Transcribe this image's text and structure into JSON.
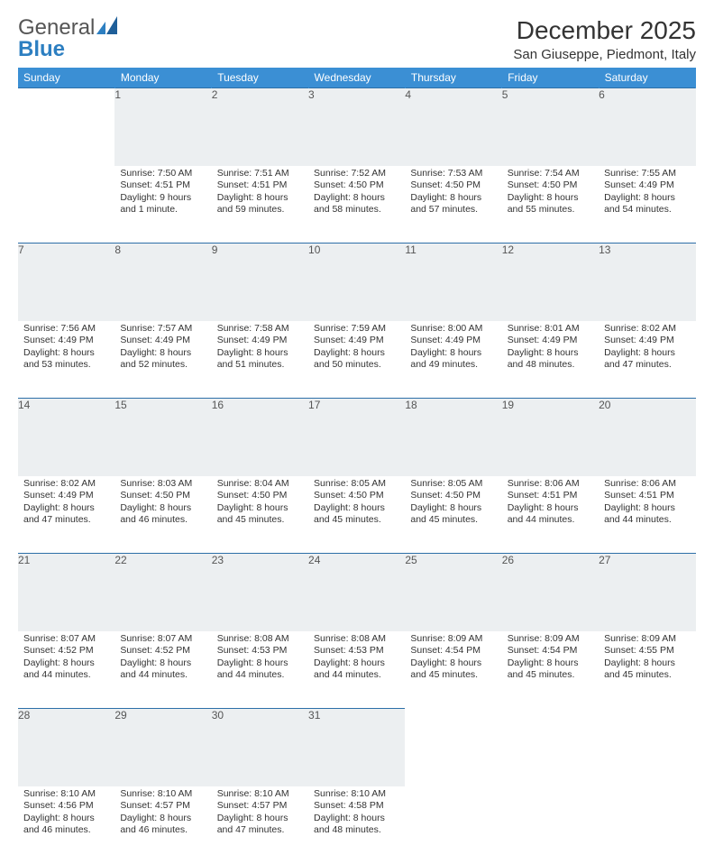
{
  "brand": {
    "part1": "General",
    "part2": "Blue"
  },
  "title": "December 2025",
  "location": "San Giuseppe, Piedmont, Italy",
  "colors": {
    "header_bg": "#3b8fd4",
    "header_text": "#ffffff",
    "daynum_bg": "#eceff1",
    "row_border": "#2d6fa8",
    "text": "#333333",
    "brand_grey": "#555555",
    "brand_blue": "#2d7fc1"
  },
  "day_headers": [
    "Sunday",
    "Monday",
    "Tuesday",
    "Wednesday",
    "Thursday",
    "Friday",
    "Saturday"
  ],
  "weeks": [
    [
      null,
      {
        "n": "1",
        "sr": "7:50 AM",
        "ss": "4:51 PM",
        "dl": "9 hours and 1 minute."
      },
      {
        "n": "2",
        "sr": "7:51 AM",
        "ss": "4:51 PM",
        "dl": "8 hours and 59 minutes."
      },
      {
        "n": "3",
        "sr": "7:52 AM",
        "ss": "4:50 PM",
        "dl": "8 hours and 58 minutes."
      },
      {
        "n": "4",
        "sr": "7:53 AM",
        "ss": "4:50 PM",
        "dl": "8 hours and 57 minutes."
      },
      {
        "n": "5",
        "sr": "7:54 AM",
        "ss": "4:50 PM",
        "dl": "8 hours and 55 minutes."
      },
      {
        "n": "6",
        "sr": "7:55 AM",
        "ss": "4:49 PM",
        "dl": "8 hours and 54 minutes."
      }
    ],
    [
      {
        "n": "7",
        "sr": "7:56 AM",
        "ss": "4:49 PM",
        "dl": "8 hours and 53 minutes."
      },
      {
        "n": "8",
        "sr": "7:57 AM",
        "ss": "4:49 PM",
        "dl": "8 hours and 52 minutes."
      },
      {
        "n": "9",
        "sr": "7:58 AM",
        "ss": "4:49 PM",
        "dl": "8 hours and 51 minutes."
      },
      {
        "n": "10",
        "sr": "7:59 AM",
        "ss": "4:49 PM",
        "dl": "8 hours and 50 minutes."
      },
      {
        "n": "11",
        "sr": "8:00 AM",
        "ss": "4:49 PM",
        "dl": "8 hours and 49 minutes."
      },
      {
        "n": "12",
        "sr": "8:01 AM",
        "ss": "4:49 PM",
        "dl": "8 hours and 48 minutes."
      },
      {
        "n": "13",
        "sr": "8:02 AM",
        "ss": "4:49 PM",
        "dl": "8 hours and 47 minutes."
      }
    ],
    [
      {
        "n": "14",
        "sr": "8:02 AM",
        "ss": "4:49 PM",
        "dl": "8 hours and 47 minutes."
      },
      {
        "n": "15",
        "sr": "8:03 AM",
        "ss": "4:50 PM",
        "dl": "8 hours and 46 minutes."
      },
      {
        "n": "16",
        "sr": "8:04 AM",
        "ss": "4:50 PM",
        "dl": "8 hours and 45 minutes."
      },
      {
        "n": "17",
        "sr": "8:05 AM",
        "ss": "4:50 PM",
        "dl": "8 hours and 45 minutes."
      },
      {
        "n": "18",
        "sr": "8:05 AM",
        "ss": "4:50 PM",
        "dl": "8 hours and 45 minutes."
      },
      {
        "n": "19",
        "sr": "8:06 AM",
        "ss": "4:51 PM",
        "dl": "8 hours and 44 minutes."
      },
      {
        "n": "20",
        "sr": "8:06 AM",
        "ss": "4:51 PM",
        "dl": "8 hours and 44 minutes."
      }
    ],
    [
      {
        "n": "21",
        "sr": "8:07 AM",
        "ss": "4:52 PM",
        "dl": "8 hours and 44 minutes."
      },
      {
        "n": "22",
        "sr": "8:07 AM",
        "ss": "4:52 PM",
        "dl": "8 hours and 44 minutes."
      },
      {
        "n": "23",
        "sr": "8:08 AM",
        "ss": "4:53 PM",
        "dl": "8 hours and 44 minutes."
      },
      {
        "n": "24",
        "sr": "8:08 AM",
        "ss": "4:53 PM",
        "dl": "8 hours and 44 minutes."
      },
      {
        "n": "25",
        "sr": "8:09 AM",
        "ss": "4:54 PM",
        "dl": "8 hours and 45 minutes."
      },
      {
        "n": "26",
        "sr": "8:09 AM",
        "ss": "4:54 PM",
        "dl": "8 hours and 45 minutes."
      },
      {
        "n": "27",
        "sr": "8:09 AM",
        "ss": "4:55 PM",
        "dl": "8 hours and 45 minutes."
      }
    ],
    [
      {
        "n": "28",
        "sr": "8:10 AM",
        "ss": "4:56 PM",
        "dl": "8 hours and 46 minutes."
      },
      {
        "n": "29",
        "sr": "8:10 AM",
        "ss": "4:57 PM",
        "dl": "8 hours and 46 minutes."
      },
      {
        "n": "30",
        "sr": "8:10 AM",
        "ss": "4:57 PM",
        "dl": "8 hours and 47 minutes."
      },
      {
        "n": "31",
        "sr": "8:10 AM",
        "ss": "4:58 PM",
        "dl": "8 hours and 48 minutes."
      },
      null,
      null,
      null
    ]
  ],
  "labels": {
    "sunrise": "Sunrise:",
    "sunset": "Sunset:",
    "daylight": "Daylight:"
  }
}
